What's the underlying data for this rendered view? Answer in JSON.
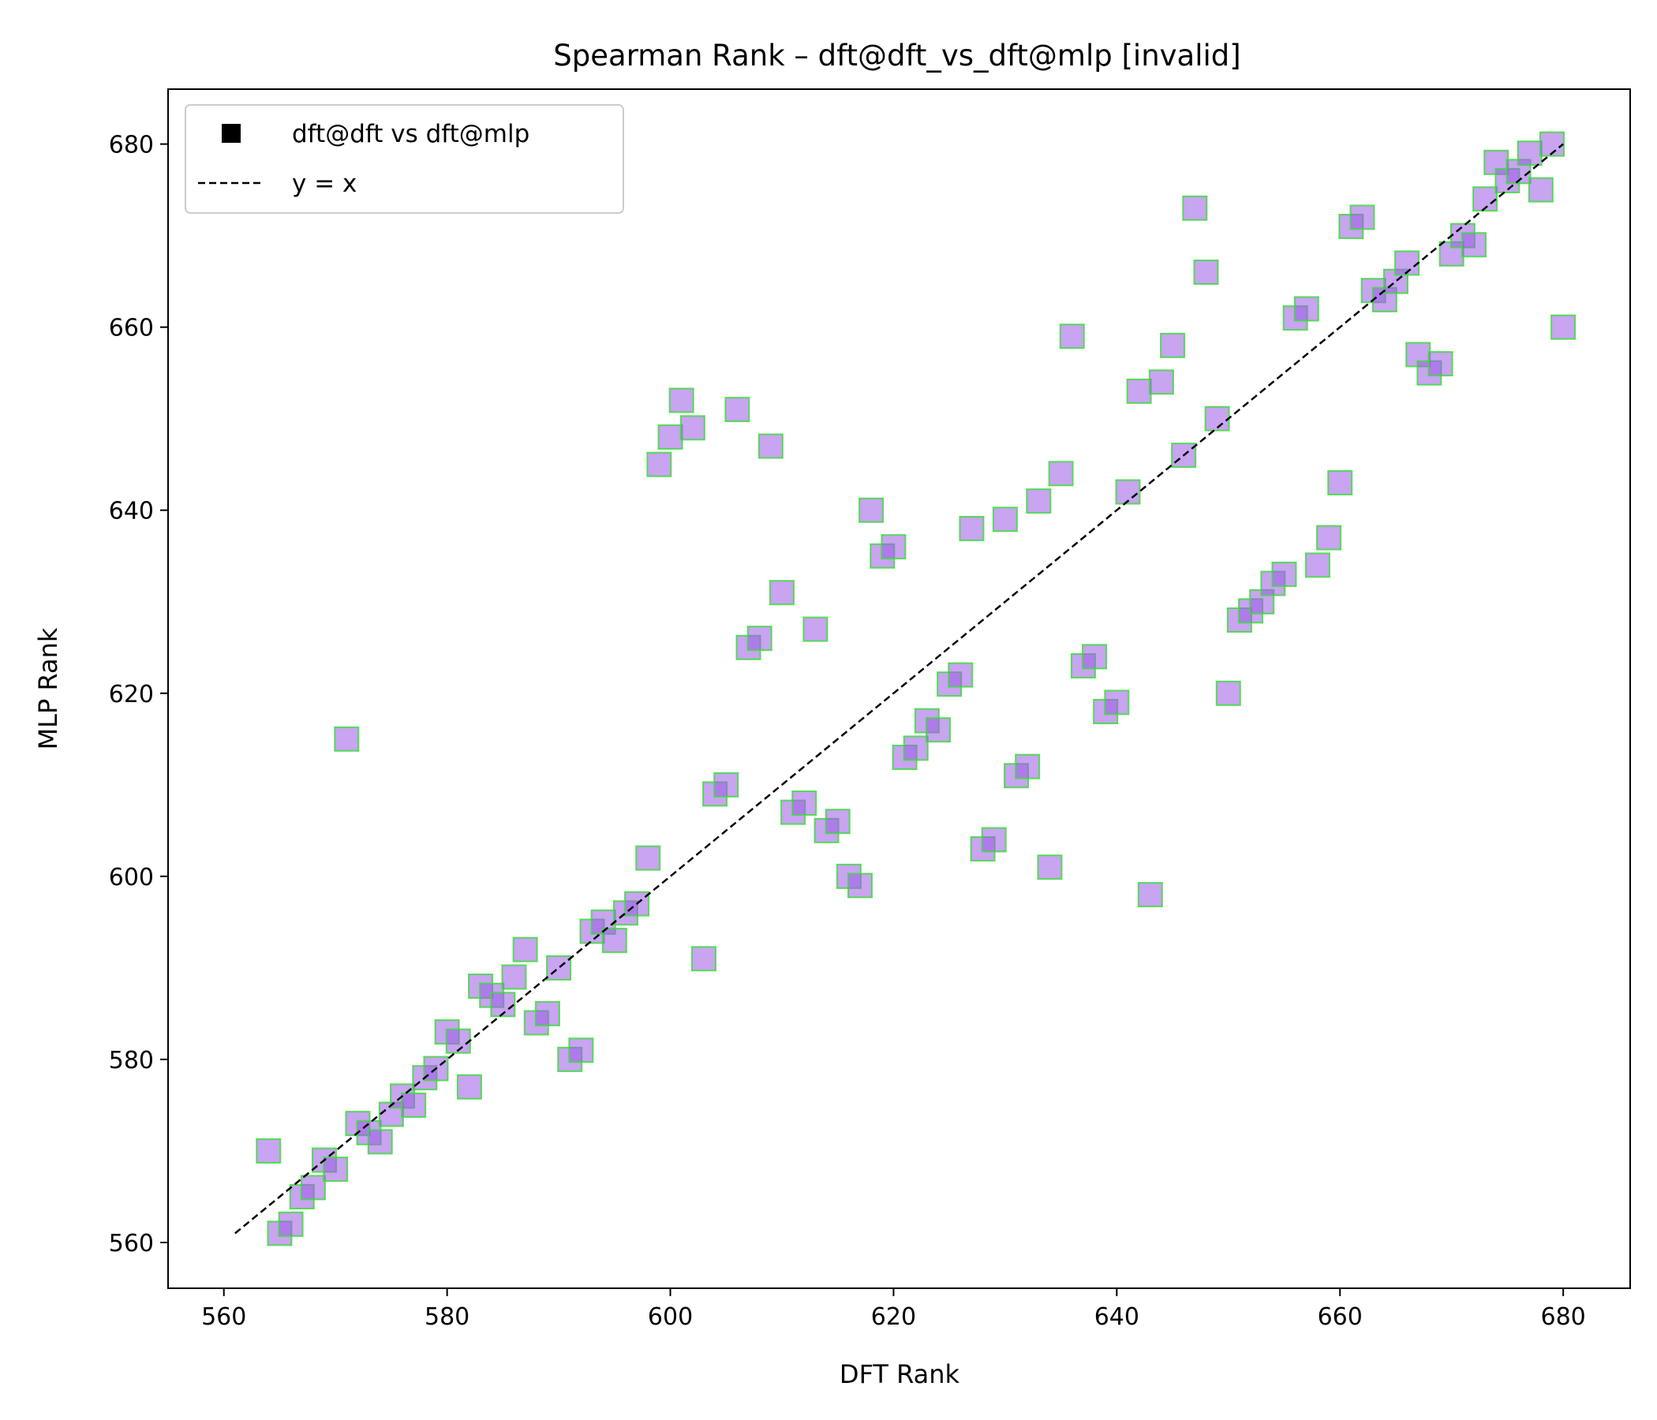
{
  "chart_data": {
    "type": "scatter",
    "title": "Spearman Rank – dft@dft_vs_dft@mlp [invalid]",
    "xlabel": "DFT Rank",
    "ylabel": "MLP Rank",
    "xlim": [
      555,
      686
    ],
    "ylim": [
      555,
      686
    ],
    "xticks": [
      560,
      580,
      600,
      620,
      640,
      660,
      680
    ],
    "yticks": [
      560,
      580,
      600,
      620,
      640,
      660,
      680
    ],
    "legend": {
      "location": "top-left",
      "entries": [
        {
          "label": "dft@dft vs dft@mlp",
          "marker": "square"
        },
        {
          "label": "y = x",
          "marker": "dashed-line"
        }
      ]
    },
    "reference_line": {
      "label": "y = x",
      "from": 561,
      "to": 680
    },
    "colors": {
      "point_fill": "#9b59e6",
      "point_edge": "#3ddc3d",
      "line": "#000000"
    },
    "series": [
      {
        "marker": "square",
        "points": [
          [
            564,
            570
          ],
          [
            565,
            561
          ],
          [
            566,
            562
          ],
          [
            567,
            565
          ],
          [
            568,
            566
          ],
          [
            569,
            569
          ],
          [
            570,
            568
          ],
          [
            571,
            615
          ],
          [
            572,
            573
          ],
          [
            573,
            572
          ],
          [
            574,
            571
          ],
          [
            575,
            574
          ],
          [
            576,
            576
          ],
          [
            577,
            575
          ],
          [
            578,
            578
          ],
          [
            579,
            579
          ],
          [
            580,
            583
          ],
          [
            581,
            582
          ],
          [
            582,
            577
          ],
          [
            583,
            588
          ],
          [
            584,
            587
          ],
          [
            585,
            586
          ],
          [
            586,
            589
          ],
          [
            587,
            592
          ],
          [
            588,
            584
          ],
          [
            589,
            585
          ],
          [
            590,
            590
          ],
          [
            591,
            580
          ],
          [
            592,
            581
          ],
          [
            593,
            594
          ],
          [
            594,
            595
          ],
          [
            595,
            593
          ],
          [
            596,
            596
          ],
          [
            597,
            597
          ],
          [
            598,
            602
          ],
          [
            599,
            645
          ],
          [
            600,
            648
          ],
          [
            601,
            652
          ],
          [
            602,
            649
          ],
          [
            603,
            591
          ],
          [
            604,
            609
          ],
          [
            605,
            610
          ],
          [
            606,
            651
          ],
          [
            607,
            625
          ],
          [
            608,
            626
          ],
          [
            609,
            647
          ],
          [
            610,
            631
          ],
          [
            611,
            607
          ],
          [
            612,
            608
          ],
          [
            613,
            627
          ],
          [
            614,
            605
          ],
          [
            615,
            606
          ],
          [
            616,
            600
          ],
          [
            617,
            599
          ],
          [
            618,
            640
          ],
          [
            619,
            635
          ],
          [
            620,
            636
          ],
          [
            621,
            613
          ],
          [
            622,
            614
          ],
          [
            623,
            617
          ],
          [
            624,
            616
          ],
          [
            625,
            621
          ],
          [
            626,
            622
          ],
          [
            627,
            638
          ],
          [
            628,
            603
          ],
          [
            629,
            604
          ],
          [
            630,
            639
          ],
          [
            631,
            611
          ],
          [
            632,
            612
          ],
          [
            633,
            641
          ],
          [
            634,
            601
          ],
          [
            635,
            644
          ],
          [
            636,
            659
          ],
          [
            637,
            623
          ],
          [
            638,
            624
          ],
          [
            639,
            618
          ],
          [
            640,
            619
          ],
          [
            641,
            642
          ],
          [
            642,
            653
          ],
          [
            643,
            598
          ],
          [
            644,
            654
          ],
          [
            645,
            658
          ],
          [
            646,
            646
          ],
          [
            647,
            673
          ],
          [
            648,
            666
          ],
          [
            649,
            650
          ],
          [
            650,
            620
          ],
          [
            651,
            628
          ],
          [
            652,
            629
          ],
          [
            653,
            630
          ],
          [
            654,
            632
          ],
          [
            655,
            633
          ],
          [
            656,
            661
          ],
          [
            657,
            662
          ],
          [
            658,
            634
          ],
          [
            659,
            637
          ],
          [
            660,
            643
          ],
          [
            661,
            671
          ],
          [
            662,
            672
          ],
          [
            663,
            664
          ],
          [
            664,
            663
          ],
          [
            665,
            665
          ],
          [
            666,
            667
          ],
          [
            667,
            657
          ],
          [
            668,
            655
          ],
          [
            669,
            656
          ],
          [
            670,
            668
          ],
          [
            671,
            670
          ],
          [
            672,
            669
          ],
          [
            673,
            674
          ],
          [
            674,
            678
          ],
          [
            675,
            676
          ],
          [
            676,
            677
          ],
          [
            677,
            679
          ],
          [
            678,
            675
          ],
          [
            679,
            680
          ],
          [
            680,
            660
          ]
        ]
      }
    ]
  }
}
